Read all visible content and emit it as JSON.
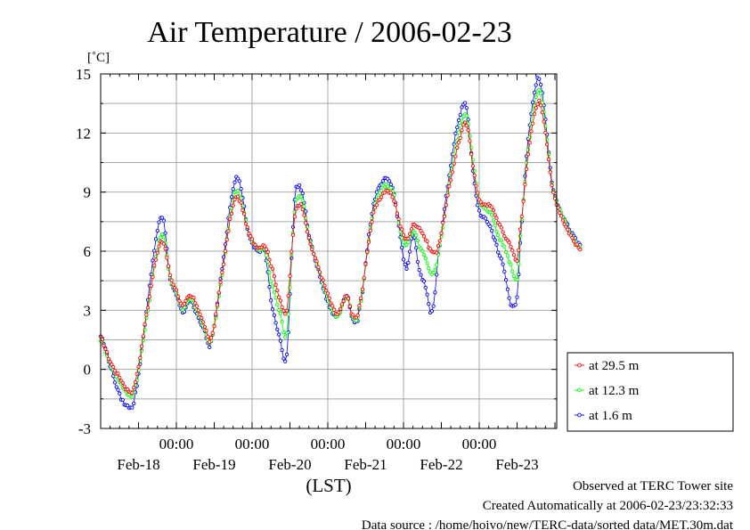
{
  "chart_data": {
    "type": "line",
    "title": "Air Temperature / 2006-02-23",
    "ylabel": "[˚C]",
    "xlabel": "(LST)",
    "ylim": [
      -3,
      15
    ],
    "yticks": [
      "15",
      "12",
      "9",
      "6",
      "3",
      "0",
      "-3"
    ],
    "xlim_days": [
      0,
      6
    ],
    "time_labels": [
      "00:00",
      "00:00",
      "00:00",
      "00:00",
      "00:00"
    ],
    "date_labels": [
      "Feb-18",
      "Feb-19",
      "Feb-20",
      "Feb-21",
      "Feb-22",
      "Feb-23"
    ],
    "grid": true,
    "legend_position": "bottom-right",
    "series": [
      {
        "name": "at 29.5 m",
        "color": "#ff0000",
        "anchors": [
          [
            "2006-02-17 12:00",
            1.6
          ],
          [
            "2006-02-17 15:00",
            0.4
          ],
          [
            "2006-02-17 18:00",
            -0.4
          ],
          [
            "2006-02-17 21:00",
            -1.1
          ],
          [
            "2006-02-17 23:00",
            -0.6
          ],
          [
            "2006-02-18 03:00",
            3.2
          ],
          [
            "2006-02-18 06:00",
            5.9
          ],
          [
            "2006-02-18 08:00",
            6.4
          ],
          [
            "2006-02-18 10:00",
            4.8
          ],
          [
            "2006-02-18 12:00",
            4.0
          ],
          [
            "2006-02-18 14:00",
            3.2
          ],
          [
            "2006-02-18 16:00",
            3.7
          ],
          [
            "2006-02-18 18:00",
            3.4
          ],
          [
            "2006-02-18 21:00",
            2.2
          ],
          [
            "2006-02-18 23:00",
            1.6
          ],
          [
            "2006-02-19 03:00",
            5.4
          ],
          [
            "2006-02-19 06:00",
            8.3
          ],
          [
            "2006-02-19 08:00",
            8.6
          ],
          [
            "2006-02-19 11:00",
            6.9
          ],
          [
            "2006-02-19 14:00",
            6.2
          ],
          [
            "2006-02-19 16:00",
            6.3
          ],
          [
            "2006-02-19 18:00",
            5.3
          ],
          [
            "2006-02-19 21:00",
            3.5
          ],
          [
            "2006-02-19 23:00",
            3.0
          ],
          [
            "2006-02-20 01:00",
            6.8
          ],
          [
            "2006-02-20 02:00",
            8.2
          ],
          [
            "2006-02-20 04:00",
            8.2
          ],
          [
            "2006-02-20 06:00",
            6.6
          ],
          [
            "2006-02-20 09:00",
            5.2
          ],
          [
            "2006-02-20 12:00",
            3.8
          ],
          [
            "2006-02-20 15:00",
            2.8
          ],
          [
            "2006-02-20 18:00",
            3.7
          ],
          [
            "2006-02-20 20:00",
            2.7
          ],
          [
            "2006-02-20 22:00",
            3.2
          ],
          [
            "2006-02-21 02:00",
            7.5
          ],
          [
            "2006-02-21 05:00",
            8.8
          ],
          [
            "2006-02-21 07:00",
            9.0
          ],
          [
            "2006-02-21 09:00",
            8.6
          ],
          [
            "2006-02-21 11:00",
            7.3
          ],
          [
            "2006-02-21 13:00",
            6.6
          ],
          [
            "2006-02-21 15:00",
            7.3
          ],
          [
            "2006-02-21 17:00",
            7.2
          ],
          [
            "2006-02-21 19:00",
            6.6
          ],
          [
            "2006-02-21 21:00",
            6.0
          ],
          [
            "2006-02-21 23:00",
            6.3
          ],
          [
            "2006-02-22 03:00",
            9.6
          ],
          [
            "2006-02-22 06:00",
            11.8
          ],
          [
            "2006-02-22 08:00",
            12.4
          ],
          [
            "2006-02-22 10:00",
            10.4
          ],
          [
            "2006-02-22 12:00",
            8.6
          ],
          [
            "2006-02-22 14:00",
            8.4
          ],
          [
            "2006-02-22 16:00",
            8.2
          ],
          [
            "2006-02-22 18:00",
            7.5
          ],
          [
            "2006-02-22 20:00",
            6.8
          ],
          [
            "2006-02-22 22:00",
            6.3
          ],
          [
            "2006-02-23 00:00",
            5.5
          ],
          [
            "2006-02-23 01:00",
            7.1
          ],
          [
            "2006-02-23 03:00",
            10.2
          ],
          [
            "2006-02-23 05:00",
            12.5
          ],
          [
            "2006-02-23 07:00",
            13.6
          ],
          [
            "2006-02-23 09:00",
            12.1
          ],
          [
            "2006-02-23 11:00",
            9.3
          ],
          [
            "2006-02-23 14:00",
            7.8
          ],
          [
            "2006-02-23 17:00",
            6.8
          ],
          [
            "2006-02-23 20:00",
            6.1
          ]
        ]
      },
      {
        "name": "at 12.3 m",
        "color": "#00ff00",
        "anchors": [
          [
            "2006-02-17 12:00",
            1.5
          ],
          [
            "2006-02-17 15:00",
            0.3
          ],
          [
            "2006-02-17 18:00",
            -0.6
          ],
          [
            "2006-02-17 21:00",
            -1.3
          ],
          [
            "2006-02-17 23:00",
            -0.8
          ],
          [
            "2006-02-18 03:00",
            3.0
          ],
          [
            "2006-02-18 06:00",
            6.1
          ],
          [
            "2006-02-18 08:00",
            6.7
          ],
          [
            "2006-02-18 10:00",
            4.7
          ],
          [
            "2006-02-18 12:00",
            3.9
          ],
          [
            "2006-02-18 14:00",
            3.1
          ],
          [
            "2006-02-18 16:00",
            3.6
          ],
          [
            "2006-02-18 18:00",
            3.2
          ],
          [
            "2006-02-18 21:00",
            2.0
          ],
          [
            "2006-02-18 23:00",
            1.5
          ],
          [
            "2006-02-19 03:00",
            5.3
          ],
          [
            "2006-02-19 06:00",
            8.6
          ],
          [
            "2006-02-19 08:00",
            8.9
          ],
          [
            "2006-02-19 11:00",
            6.9
          ],
          [
            "2006-02-19 14:00",
            6.1
          ],
          [
            "2006-02-19 16:00",
            6.1
          ],
          [
            "2006-02-19 18:00",
            4.5
          ],
          [
            "2006-02-19 21:00",
            2.8
          ],
          [
            "2006-02-19 23:00",
            1.9
          ],
          [
            "2006-02-20 01:00",
            6.9
          ],
          [
            "2006-02-20 02:00",
            8.6
          ],
          [
            "2006-02-20 04:00",
            8.6
          ],
          [
            "2006-02-20 06:00",
            6.7
          ],
          [
            "2006-02-20 09:00",
            5.1
          ],
          [
            "2006-02-20 12:00",
            3.6
          ],
          [
            "2006-02-20 15:00",
            2.7
          ],
          [
            "2006-02-20 18:00",
            3.7
          ],
          [
            "2006-02-20 20:00",
            2.6
          ],
          [
            "2006-02-20 22:00",
            3.1
          ],
          [
            "2006-02-21 02:00",
            7.6
          ],
          [
            "2006-02-21 05:00",
            9.1
          ],
          [
            "2006-02-21 07:00",
            9.3
          ],
          [
            "2006-02-21 09:00",
            8.8
          ],
          [
            "2006-02-21 11:00",
            7.0
          ],
          [
            "2006-02-21 13:00",
            6.3
          ],
          [
            "2006-02-21 15:00",
            7.0
          ],
          [
            "2006-02-21 17:00",
            6.3
          ],
          [
            "2006-02-21 19:00",
            5.6
          ],
          [
            "2006-02-21 21:00",
            4.8
          ],
          [
            "2006-02-21 23:00",
            5.9
          ],
          [
            "2006-02-22 03:00",
            9.9
          ],
          [
            "2006-02-22 06:00",
            12.3
          ],
          [
            "2006-02-22 08:00",
            12.9
          ],
          [
            "2006-02-22 10:00",
            10.6
          ],
          [
            "2006-02-22 12:00",
            8.5
          ],
          [
            "2006-02-22 14:00",
            8.2
          ],
          [
            "2006-02-22 16:00",
            7.8
          ],
          [
            "2006-02-22 18:00",
            6.8
          ],
          [
            "2006-02-22 20:00",
            6.2
          ],
          [
            "2006-02-22 22:00",
            5.3
          ],
          [
            "2006-02-23 00:00",
            4.6
          ],
          [
            "2006-02-23 01:00",
            6.8
          ],
          [
            "2006-02-23 03:00",
            10.4
          ],
          [
            "2006-02-23 05:00",
            13.0
          ],
          [
            "2006-02-23 07:00",
            14.2
          ],
          [
            "2006-02-23 09:00",
            12.4
          ],
          [
            "2006-02-23 11:00",
            9.4
          ],
          [
            "2006-02-23 14:00",
            7.9
          ],
          [
            "2006-02-23 17:00",
            6.9
          ],
          [
            "2006-02-23 20:00",
            6.2
          ]
        ]
      },
      {
        "name": "at 1.6 m",
        "color": "#0000ff",
        "anchors": [
          [
            "2006-02-17 12:00",
            1.7
          ],
          [
            "2006-02-17 15:00",
            0.2
          ],
          [
            "2006-02-17 18:00",
            -1.3
          ],
          [
            "2006-02-17 21:00",
            -1.9
          ],
          [
            "2006-02-17 23:00",
            -1.2
          ],
          [
            "2006-02-18 03:00",
            3.5
          ],
          [
            "2006-02-18 06:00",
            7.0
          ],
          [
            "2006-02-18 08:00",
            7.5
          ],
          [
            "2006-02-18 10:00",
            4.6
          ],
          [
            "2006-02-18 12:00",
            3.8
          ],
          [
            "2006-02-18 14:00",
            2.9
          ],
          [
            "2006-02-18 16:00",
            3.5
          ],
          [
            "2006-02-18 18:00",
            3.0
          ],
          [
            "2006-02-18 21:00",
            1.9
          ],
          [
            "2006-02-18 23:00",
            1.4
          ],
          [
            "2006-02-19 03:00",
            5.7
          ],
          [
            "2006-02-19 06:00",
            9.2
          ],
          [
            "2006-02-19 08:00",
            9.5
          ],
          [
            "2006-02-19 11:00",
            6.8
          ],
          [
            "2006-02-19 14:00",
            6.0
          ],
          [
            "2006-02-19 16:00",
            6.0
          ],
          [
            "2006-02-19 18:00",
            3.5
          ],
          [
            "2006-02-19 21:00",
            1.5
          ],
          [
            "2006-02-19 23:00",
            0.7
          ],
          [
            "2006-02-20 01:00",
            7.2
          ],
          [
            "2006-02-20 02:00",
            9.2
          ],
          [
            "2006-02-20 04:00",
            8.9
          ],
          [
            "2006-02-20 06:00",
            6.8
          ],
          [
            "2006-02-20 09:00",
            5.0
          ],
          [
            "2006-02-20 12:00",
            3.4
          ],
          [
            "2006-02-20 15:00",
            2.7
          ],
          [
            "2006-02-20 18:00",
            3.8
          ],
          [
            "2006-02-20 20:00",
            2.5
          ],
          [
            "2006-02-20 22:00",
            3.0
          ],
          [
            "2006-02-21 02:00",
            7.9
          ],
          [
            "2006-02-21 05:00",
            9.4
          ],
          [
            "2006-02-21 07:00",
            9.6
          ],
          [
            "2006-02-21 09:00",
            8.9
          ],
          [
            "2006-02-21 11:00",
            6.7
          ],
          [
            "2006-02-21 13:00",
            5.1
          ],
          [
            "2006-02-21 15:00",
            6.9
          ],
          [
            "2006-02-21 17:00",
            5.0
          ],
          [
            "2006-02-21 19:00",
            4.2
          ],
          [
            "2006-02-21 21:00",
            2.9
          ],
          [
            "2006-02-21 23:00",
            5.8
          ],
          [
            "2006-02-22 03:00",
            10.4
          ],
          [
            "2006-02-22 06:00",
            12.9
          ],
          [
            "2006-02-22 08:00",
            13.3
          ],
          [
            "2006-02-22 10:00",
            10.1
          ],
          [
            "2006-02-22 12:00",
            8.0
          ],
          [
            "2006-02-22 14:00",
            7.7
          ],
          [
            "2006-02-22 16:00",
            7.0
          ],
          [
            "2006-02-22 18:00",
            6.0
          ],
          [
            "2006-02-22 20:00",
            5.0
          ],
          [
            "2006-02-22 22:00",
            3.3
          ],
          [
            "2006-02-23 00:00",
            3.6
          ],
          [
            "2006-02-23 01:00",
            6.5
          ],
          [
            "2006-02-23 03:00",
            10.8
          ],
          [
            "2006-02-23 05:00",
            13.6
          ],
          [
            "2006-02-23 07:00",
            14.8
          ],
          [
            "2006-02-23 09:00",
            12.7
          ],
          [
            "2006-02-23 11:00",
            9.5
          ],
          [
            "2006-02-23 14:00",
            8.0
          ],
          [
            "2006-02-23 17:00",
            7.0
          ],
          [
            "2006-02-23 20:00",
            6.3
          ]
        ]
      }
    ]
  },
  "footer": {
    "line1": "Observed at TERC Tower site",
    "line2": "Created Automatically at 2006-02-23/23:32:33",
    "line3": "Data source : /home/hoivo/new/TERC-data/sorted  data/MET.30m.dat"
  }
}
